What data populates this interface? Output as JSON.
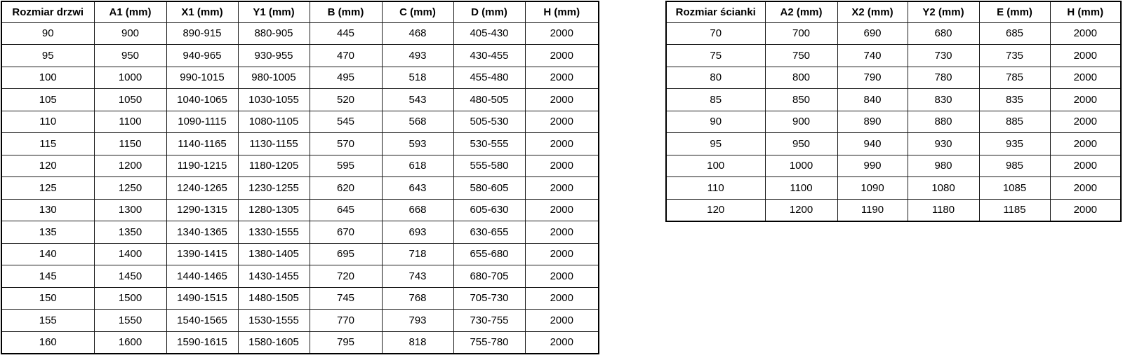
{
  "chart_data": [
    {
      "type": "table",
      "name": "door-dimensions",
      "headers": [
        "Rozmiar drzwi",
        "A1 (mm)",
        "X1 (mm)",
        "Y1 (mm)",
        "B (mm)",
        "C (mm)",
        "D (mm)",
        "H (mm)"
      ],
      "rows": [
        [
          "90",
          "900",
          "890-915",
          "880-905",
          "445",
          "468",
          "405-430",
          "2000"
        ],
        [
          "95",
          "950",
          "940-965",
          "930-955",
          "470",
          "493",
          "430-455",
          "2000"
        ],
        [
          "100",
          "1000",
          "990-1015",
          "980-1005",
          "495",
          "518",
          "455-480",
          "2000"
        ],
        [
          "105",
          "1050",
          "1040-1065",
          "1030-1055",
          "520",
          "543",
          "480-505",
          "2000"
        ],
        [
          "110",
          "1100",
          "1090-1115",
          "1080-1105",
          "545",
          "568",
          "505-530",
          "2000"
        ],
        [
          "115",
          "1150",
          "1140-1165",
          "1130-1155",
          "570",
          "593",
          "530-555",
          "2000"
        ],
        [
          "120",
          "1200",
          "1190-1215",
          "1180-1205",
          "595",
          "618",
          "555-580",
          "2000"
        ],
        [
          "125",
          "1250",
          "1240-1265",
          "1230-1255",
          "620",
          "643",
          "580-605",
          "2000"
        ],
        [
          "130",
          "1300",
          "1290-1315",
          "1280-1305",
          "645",
          "668",
          "605-630",
          "2000"
        ],
        [
          "135",
          "1350",
          "1340-1365",
          "1330-1555",
          "670",
          "693",
          "630-655",
          "2000"
        ],
        [
          "140",
          "1400",
          "1390-1415",
          "1380-1405",
          "695",
          "718",
          "655-680",
          "2000"
        ],
        [
          "145",
          "1450",
          "1440-1465",
          "1430-1455",
          "720",
          "743",
          "680-705",
          "2000"
        ],
        [
          "150",
          "1500",
          "1490-1515",
          "1480-1505",
          "745",
          "768",
          "705-730",
          "2000"
        ],
        [
          "155",
          "1550",
          "1540-1565",
          "1530-1555",
          "770",
          "793",
          "730-755",
          "2000"
        ],
        [
          "160",
          "1600",
          "1590-1615",
          "1580-1605",
          "795",
          "818",
          "755-780",
          "2000"
        ]
      ]
    },
    {
      "type": "table",
      "name": "wall-dimensions",
      "headers": [
        "Rozmiar ścianki",
        "A2 (mm)",
        "X2 (mm)",
        "Y2 (mm)",
        "E (mm)",
        "H (mm)"
      ],
      "rows": [
        [
          "70",
          "700",
          "690",
          "680",
          "685",
          "2000"
        ],
        [
          "75",
          "750",
          "740",
          "730",
          "735",
          "2000"
        ],
        [
          "80",
          "800",
          "790",
          "780",
          "785",
          "2000"
        ],
        [
          "85",
          "850",
          "840",
          "830",
          "835",
          "2000"
        ],
        [
          "90",
          "900",
          "890",
          "880",
          "885",
          "2000"
        ],
        [
          "95",
          "950",
          "940",
          "930",
          "935",
          "2000"
        ],
        [
          "100",
          "1000",
          "990",
          "980",
          "985",
          "2000"
        ],
        [
          "110",
          "1100",
          "1090",
          "1080",
          "1085",
          "2000"
        ],
        [
          "120",
          "1200",
          "1190",
          "1180",
          "1185",
          "2000"
        ]
      ]
    }
  ],
  "colors": {
    "background": "#ffffff",
    "border": "#000000",
    "text": "#000000"
  }
}
